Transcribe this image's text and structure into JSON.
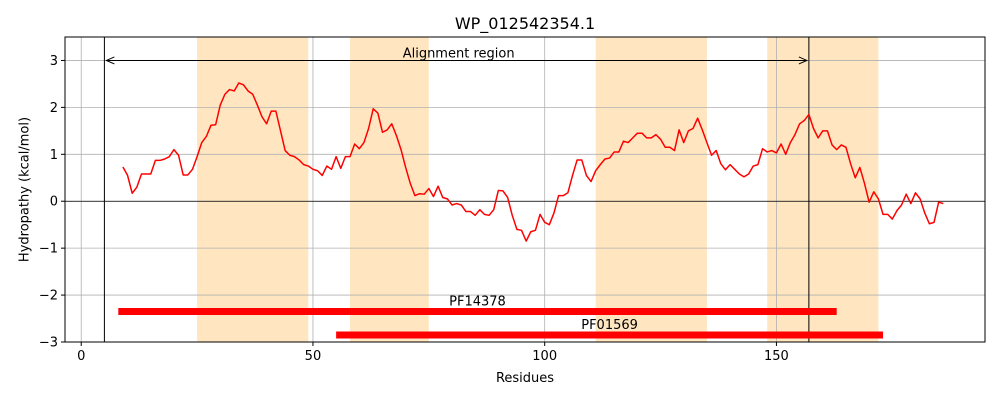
{
  "chart_data": {
    "type": "line",
    "title": "WP_012542354.1",
    "xlabel": "Residues",
    "ylabel": "Hydropathy (kcal/mol)",
    "xlim": [
      -3.5,
      195
    ],
    "ylim": [
      -3,
      3.5
    ],
    "xticks": [
      0,
      50,
      100,
      150
    ],
    "yticks": [
      -3,
      -2,
      -1,
      0,
      1,
      2,
      3
    ],
    "grid": true,
    "colors": {
      "line": "#ff0000",
      "band": "#ffe6c0",
      "domain_bar": "#ff0000",
      "axis": "#000000",
      "grid": "#b0b0b0"
    },
    "highlight_regions": [
      [
        25,
        49
      ],
      [
        58,
        75
      ],
      [
        111,
        135
      ],
      [
        148,
        172
      ]
    ],
    "reference_lines": {
      "horizontal_y": 0,
      "vertical_x": [
        5,
        157
      ]
    },
    "annotation": {
      "label": "Alignment region",
      "x_start": 5,
      "x_end": 157,
      "y": 3.0
    },
    "domains": [
      {
        "name": "PF14378",
        "start": 8,
        "end": 163,
        "y": -2.35
      },
      {
        "name": "PF01569",
        "start": 55,
        "end": 173,
        "y": -2.85
      }
    ],
    "series": [
      {
        "x": [
          9,
          10,
          11,
          12,
          13,
          14,
          15,
          16,
          17,
          18,
          19,
          20,
          21,
          22,
          23,
          24,
          25,
          26,
          27,
          28,
          29,
          30,
          31,
          32,
          33,
          34,
          35,
          36,
          37,
          38,
          39,
          40,
          41,
          42,
          43,
          44,
          45,
          46,
          47,
          48,
          49,
          50,
          51,
          52,
          53,
          54,
          55,
          56,
          57,
          58,
          59,
          60,
          61,
          62,
          63,
          64,
          65,
          66,
          67,
          68,
          69,
          70,
          71,
          72,
          73,
          74,
          75,
          76,
          77,
          78,
          79,
          80,
          81,
          82,
          83,
          84,
          85,
          86,
          87,
          88,
          89,
          90,
          91,
          92,
          93,
          94,
          95,
          96,
          97,
          98,
          99,
          100,
          101,
          102,
          103,
          104,
          105,
          106,
          107,
          108,
          109,
          110,
          111,
          112,
          113,
          114,
          115,
          116,
          117,
          118,
          119,
          120,
          121,
          122,
          123,
          124,
          125,
          126,
          127,
          128,
          129,
          130,
          131,
          132,
          133,
          134,
          135,
          136,
          137,
          138,
          139,
          140,
          141,
          142,
          143,
          144,
          145,
          146,
          147,
          148,
          149,
          150,
          151,
          152,
          153,
          154,
          155,
          156,
          157,
          158,
          159,
          160,
          161,
          162,
          163,
          164,
          165,
          166,
          167,
          168,
          169,
          170,
          171,
          172,
          173,
          174,
          175,
          176,
          177,
          178,
          179,
          180,
          181,
          182,
          183,
          184,
          185,
          186
        ],
        "values": [
          0.73,
          0.55,
          0.17,
          0.3,
          0.58,
          0.58,
          0.58,
          0.87,
          0.87,
          0.9,
          0.95,
          1.1,
          0.98,
          0.56,
          0.56,
          0.68,
          0.95,
          1.25,
          1.38,
          1.62,
          1.63,
          2.05,
          2.28,
          2.38,
          2.35,
          2.52,
          2.48,
          2.35,
          2.28,
          2.05,
          1.8,
          1.65,
          1.92,
          1.92,
          1.5,
          1.08,
          0.98,
          0.95,
          0.88,
          0.78,
          0.75,
          0.68,
          0.65,
          0.55,
          0.75,
          0.68,
          0.95,
          0.7,
          0.95,
          0.95,
          1.22,
          1.12,
          1.25,
          1.55,
          1.97,
          1.88,
          1.47,
          1.52,
          1.65,
          1.4,
          1.1,
          0.72,
          0.38,
          0.12,
          0.16,
          0.15,
          0.27,
          0.1,
          0.32,
          0.08,
          0.05,
          -0.08,
          -0.05,
          -0.08,
          -0.22,
          -0.22,
          -0.3,
          -0.18,
          -0.28,
          -0.3,
          -0.18,
          0.23,
          0.22,
          0.08,
          -0.3,
          -0.6,
          -0.62,
          -0.85,
          -0.65,
          -0.62,
          -0.28,
          -0.45,
          -0.5,
          -0.25,
          0.12,
          0.12,
          0.18,
          0.55,
          0.88,
          0.88,
          0.55,
          0.42,
          0.65,
          0.78,
          0.9,
          0.92,
          1.05,
          1.05,
          1.28,
          1.25,
          1.35,
          1.45,
          1.45,
          1.35,
          1.35,
          1.42,
          1.32,
          1.15,
          1.15,
          1.08,
          1.52,
          1.25,
          1.5,
          1.55,
          1.77,
          1.52,
          1.25,
          0.98,
          1.08,
          0.8,
          0.67,
          0.78,
          0.68,
          0.58,
          0.52,
          0.58,
          0.75,
          0.78,
          1.12,
          1.05,
          1.08,
          1.03,
          1.22,
          1.0,
          1.25,
          1.42,
          1.65,
          1.72,
          1.85,
          1.55,
          1.35,
          1.5,
          1.5,
          1.2,
          1.1,
          1.2,
          1.15,
          0.8,
          0.5,
          0.72,
          0.38,
          -0.02,
          0.2,
          0.05,
          -0.28,
          -0.28,
          -0.38,
          -0.2,
          -0.08,
          0.15,
          -0.05,
          0.18,
          0.05,
          -0.25,
          -0.48,
          -0.45,
          -0.02,
          -0.05
        ]
      }
    ]
  }
}
